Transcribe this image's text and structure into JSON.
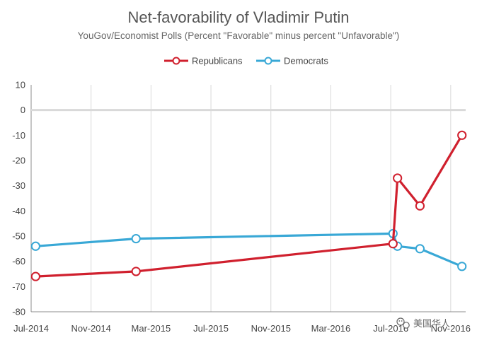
{
  "chart_data": {
    "type": "line",
    "title": "Net-favorability of Vladimir Putin",
    "subtitle": "YouGov/Economist Polls (Percent \"Favorable\" minus percent \"Unfavorable\")",
    "xlabel": "",
    "ylabel": "",
    "x_ticks": [
      {
        "label": "Jul-2014",
        "t": 0
      },
      {
        "label": "Nov-2014",
        "t": 4
      },
      {
        "label": "Mar-2015",
        "t": 8
      },
      {
        "label": "Jul-2015",
        "t": 12
      },
      {
        "label": "Nov-2015",
        "t": 16
      },
      {
        "label": "Mar-2016",
        "t": 20
      },
      {
        "label": "Jul-2016",
        "t": 24
      },
      {
        "label": "Nov-2016",
        "t": 28
      }
    ],
    "x_range": [
      0,
      29
    ],
    "ylim": [
      -80,
      10
    ],
    "y_ticks": [
      10,
      0,
      -10,
      -20,
      -30,
      -40,
      -50,
      -60,
      -70,
      -80
    ],
    "grid": "vertical",
    "legend_position": "top-center",
    "series": [
      {
        "name": "Republicans",
        "color": "#d0202e",
        "points": [
          {
            "t": 0.3,
            "y": -66
          },
          {
            "t": 7.0,
            "y": -64
          },
          {
            "t": 24.15,
            "y": -53
          },
          {
            "t": 24.45,
            "y": -27
          },
          {
            "t": 25.95,
            "y": -38
          },
          {
            "t": 28.75,
            "y": -10
          }
        ]
      },
      {
        "name": "Democrats",
        "color": "#39a8d6",
        "points": [
          {
            "t": 0.3,
            "y": -54
          },
          {
            "t": 7.0,
            "y": -51
          },
          {
            "t": 24.15,
            "y": -49
          },
          {
            "t": 24.45,
            "y": -54
          },
          {
            "t": 25.95,
            "y": -55
          },
          {
            "t": 28.75,
            "y": -62
          }
        ]
      }
    ]
  },
  "watermark": {
    "text": "美国华人",
    "icon": "wechat-icon"
  }
}
